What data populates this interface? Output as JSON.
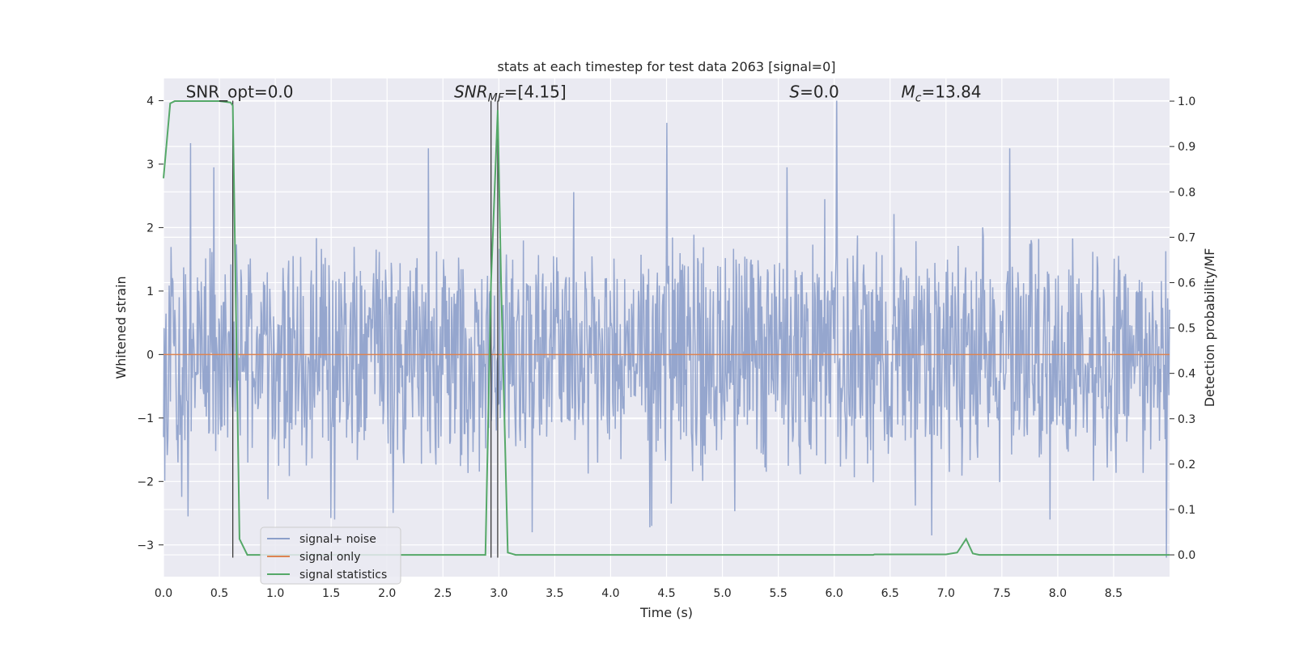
{
  "chart_data": {
    "type": "line",
    "title": "stats at each timestep for test data 2063 [signal=0]",
    "xlabel": "Time (s)",
    "ylabel": "Whitened strain",
    "y2label": "Detection probability/MF",
    "xlim": [
      0.0,
      9.0
    ],
    "ylim": [
      -3.5,
      4.35
    ],
    "y2lim": [
      -0.048,
      1.05
    ],
    "x_ticks": [
      "0.0",
      "0.5",
      "1.0",
      "1.5",
      "2.0",
      "2.5",
      "3.0",
      "3.5",
      "4.0",
      "4.5",
      "5.0",
      "5.5",
      "6.0",
      "6.5",
      "7.0",
      "7.5",
      "8.0",
      "8.5"
    ],
    "y_ticks": [
      "−3",
      "−2",
      "−1",
      "0",
      "1",
      "2",
      "3",
      "4"
    ],
    "y2_ticks": [
      "0.0",
      "0.1",
      "0.2",
      "0.3",
      "0.4",
      "0.5",
      "0.6",
      "0.7",
      "0.8",
      "0.9",
      "1.0"
    ],
    "grid": true,
    "legend_position": "lower-left",
    "annotations": [
      {
        "text": "SNR_opt=0.0",
        "x": 0.2,
        "y": 4.05
      },
      {
        "text": "SNR_MF=[4.15]",
        "x": 2.6,
        "y": 4.05
      },
      {
        "text": "S=0.0",
        "x": 5.6,
        "y": 4.05
      },
      {
        "text": "M_c=13.84",
        "x": 6.6,
        "y": 4.05
      }
    ],
    "vlines": [
      {
        "x": 0.62,
        "y_from": -3.2,
        "y_to": 4.0
      },
      {
        "x": 2.93,
        "y_from": -3.2,
        "y_to": 4.0
      },
      {
        "x": 2.99,
        "y_from": -3.2,
        "y_to": 4.0
      }
    ],
    "series": [
      {
        "name": "signal+ noise",
        "color": "#8c9fca",
        "kind": "noise",
        "t_start": 0.0,
        "t_end": 9.0,
        "samples": 1600,
        "typical_abs": 1.5,
        "max": 4.0,
        "min": -3.2,
        "notable_peaks": [
          {
            "x": 0.24,
            "y": 3.33
          },
          {
            "x": 0.45,
            "y": 2.95
          },
          {
            "x": 2.37,
            "y": 3.25
          },
          {
            "x": 4.5,
            "y": 3.65
          },
          {
            "x": 6.02,
            "y": 4.0
          },
          {
            "x": 7.57,
            "y": 3.25
          },
          {
            "x": 5.58,
            "y": 2.95
          },
          {
            "x": 6.87,
            "y": -2.85
          },
          {
            "x": 3.3,
            "y": -2.8
          },
          {
            "x": 4.37,
            "y": -2.7
          },
          {
            "x": 7.93,
            "y": -2.6
          },
          {
            "x": 0.22,
            "y": -2.55
          },
          {
            "x": 1.53,
            "y": -2.6
          },
          {
            "x": 8.97,
            "y": -3.2
          }
        ]
      },
      {
        "name": "signal only",
        "color": "#dd8452",
        "kind": "line",
        "axis": "left",
        "x": [
          0.0,
          9.0
        ],
        "y": [
          0.0,
          0.0
        ]
      },
      {
        "name": "signal statistics",
        "color": "#55a868",
        "kind": "line",
        "axis": "right",
        "x": [
          0.0,
          0.06,
          0.1,
          0.3,
          0.5,
          0.6,
          0.62,
          0.68,
          0.75,
          1.0,
          2.0,
          2.88,
          2.93,
          2.99,
          3.02,
          3.08,
          3.15,
          4.0,
          5.0,
          6.35,
          6.36,
          7.0,
          7.1,
          7.18,
          7.24,
          7.3,
          8.0,
          9.0
        ],
        "y": [
          0.83,
          0.995,
          1.0,
          1.0,
          1.0,
          0.997,
          0.99,
          0.035,
          0.0,
          0.0,
          0.0,
          0.0,
          0.6,
          0.98,
          0.6,
          0.005,
          0.0,
          0.0,
          0.0,
          0.0,
          0.001,
          0.001,
          0.005,
          0.035,
          0.003,
          0.0,
          0.0,
          0.0
        ]
      }
    ]
  }
}
